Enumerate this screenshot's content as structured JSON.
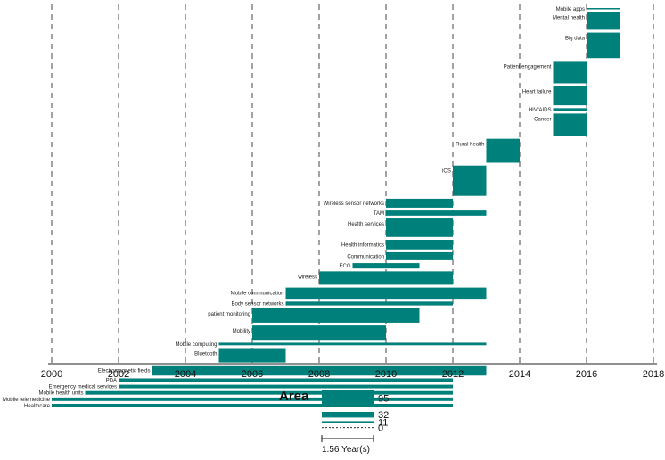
{
  "chart_data": {
    "type": "timeline-bar",
    "title": "",
    "xlabel": "",
    "ylabel": "",
    "xlim": [
      2000,
      2018
    ],
    "x_ticks": [
      "2000",
      "2002",
      "2004",
      "2006",
      "2008",
      "2010",
      "2012",
      "2014",
      "2016",
      "2018"
    ],
    "color": "#00807a",
    "topics": [
      {
        "label": "Mobile apps",
        "start": 2016,
        "end": 2017,
        "area": 0.5
      },
      {
        "label": "Mental health",
        "start": 2016,
        "end": 2017,
        "area": 55
      },
      {
        "label": "Big data",
        "start": 2016,
        "end": 2017,
        "area": 80
      },
      {
        "label": "Patient engagement",
        "start": 2015,
        "end": 2016,
        "area": 70
      },
      {
        "label": "Heart failure",
        "start": 2015,
        "end": 2016,
        "area": 60
      },
      {
        "label": "HIV/AIDS",
        "start": 2015,
        "end": 2016,
        "area": 8
      },
      {
        "label": "Cancer",
        "start": 2015,
        "end": 2016,
        "area": 70
      },
      {
        "label": "Rural health",
        "start": 2013,
        "end": 2014,
        "area": 75
      },
      {
        "label": "iOS",
        "start": 2012,
        "end": 2013,
        "area": 95
      },
      {
        "label": "Wireless sensor networks",
        "start": 2010,
        "end": 2012,
        "area": 28
      },
      {
        "label": "TAM",
        "start": 2010,
        "end": 2013,
        "area": 16
      },
      {
        "label": "Health services",
        "start": 2010,
        "end": 2012,
        "area": 58
      },
      {
        "label": "Health informatics",
        "start": 2010,
        "end": 2012,
        "area": 30
      },
      {
        "label": "Communication",
        "start": 2010,
        "end": 2012,
        "area": 25
      },
      {
        "label": "ECG",
        "start": 2009,
        "end": 2011,
        "area": 17
      },
      {
        "label": "wireless",
        "start": 2008,
        "end": 2012,
        "area": 42
      },
      {
        "label": "Mobile communication",
        "start": 2007,
        "end": 2013,
        "area": 35
      },
      {
        "label": "Body sensor networks",
        "start": 2007,
        "end": 2012,
        "area": 12
      },
      {
        "label": "patient monitoring",
        "start": 2006,
        "end": 2011,
        "area": 45
      },
      {
        "label": "Mobility",
        "start": 2006,
        "end": 2010,
        "area": 45
      },
      {
        "label": "Mobile computing",
        "start": 2005,
        "end": 2013,
        "area": 8
      },
      {
        "label": "Bluetooth",
        "start": 2005,
        "end": 2007,
        "area": 45
      },
      {
        "label": "Electromagnetic fields",
        "start": 2003,
        "end": 2013,
        "area": 32
      },
      {
        "label": "PDA",
        "start": 2002,
        "end": 2012,
        "area": 11
      },
      {
        "label": "Emergency medical services",
        "start": 2002,
        "end": 2012,
        "area": 11
      },
      {
        "label": "Mobile health units",
        "start": 2001,
        "end": 2012,
        "area": 11
      },
      {
        "label": "Mobile telemedicine",
        "start": 2000,
        "end": 2012,
        "area": 11
      },
      {
        "label": "Healthcare",
        "start": 2000,
        "end": 2012,
        "area": 11
      }
    ],
    "legend": {
      "title": "Area",
      "entries": [
        {
          "label": "95",
          "value": 95
        },
        {
          "label": "32",
          "value": 32
        },
        {
          "label": "11",
          "value": 11
        },
        {
          "label": "0",
          "value": 0
        }
      ],
      "scale_label": "1.56 Year(s)",
      "scale_years": 1.56
    }
  }
}
